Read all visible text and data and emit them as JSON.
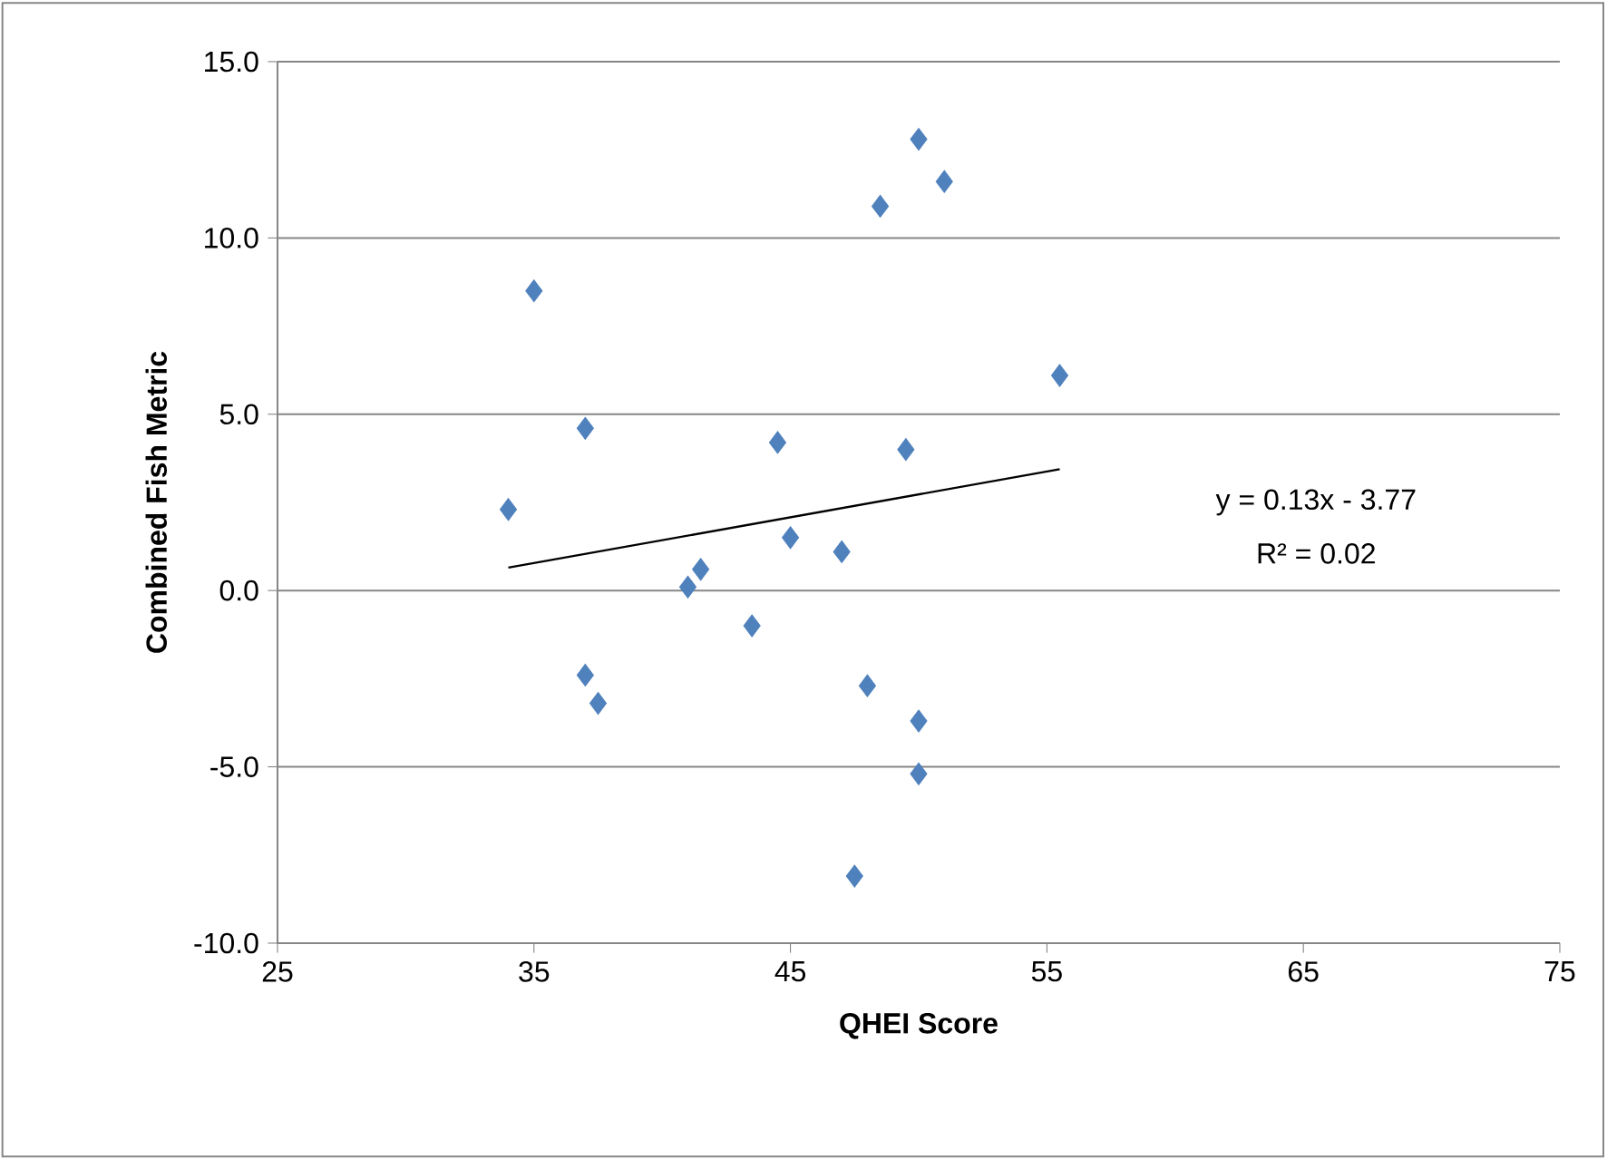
{
  "chart_data": {
    "type": "scatter",
    "xlabel": "QHEI Score",
    "ylabel": "Combined Fish Metric",
    "xlim": [
      25,
      75
    ],
    "xticks": [
      25,
      35,
      45,
      55,
      65,
      75
    ],
    "ylim": [
      -10,
      15
    ],
    "yticks": [
      {
        "value": -10,
        "label": "-10.0"
      },
      {
        "value": -5,
        "label": "-5.0"
      },
      {
        "value": 0,
        "label": "0.0"
      },
      {
        "value": 5,
        "label": "5.0"
      },
      {
        "value": 10,
        "label": "10.0"
      },
      {
        "value": 15,
        "label": "15.0"
      }
    ],
    "grid": "y",
    "marker": "diamond",
    "annotations": [
      "y = 0.13x - 3.77",
      "R² = 0.02"
    ],
    "series": [
      {
        "color": "#4f81bd",
        "x": [
          34,
          35,
          37,
          37,
          37.5,
          41,
          41.5,
          43.5,
          44.5,
          45,
          47,
          47.5,
          48,
          48.5,
          49.5,
          50,
          50,
          50,
          51,
          55.5
        ],
        "values": [
          2.3,
          8.5,
          4.6,
          -2.4,
          -3.2,
          0.1,
          0.6,
          -1.0,
          4.2,
          1.5,
          1.1,
          -8.1,
          -2.7,
          10.9,
          4.0,
          12.8,
          -3.7,
          -5.2,
          11.6,
          6.1
        ]
      },
      {
        "type": "line",
        "color": "#000000",
        "marker": "none",
        "x": [
          34,
          55.5
        ],
        "values": [
          0.65,
          3.44
        ]
      }
    ]
  }
}
